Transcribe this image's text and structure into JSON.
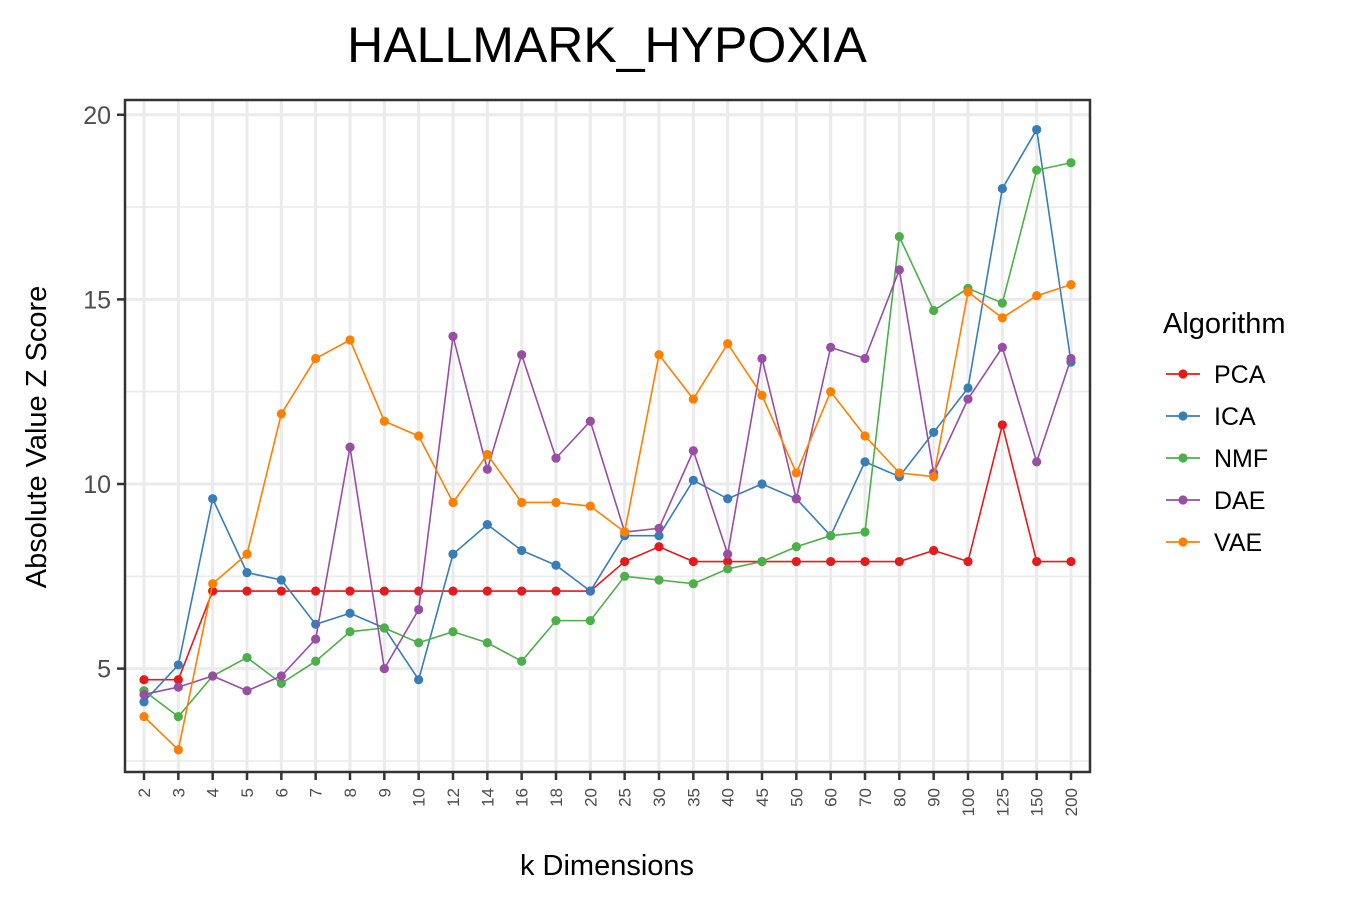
{
  "chart_data": {
    "type": "line",
    "title": "HALLMARK_HYPOXIA",
    "xlabel": "k Dimensions",
    "ylabel": "Absolute Value Z Score",
    "categories": [
      "2",
      "3",
      "4",
      "5",
      "6",
      "7",
      "8",
      "9",
      "10",
      "12",
      "14",
      "16",
      "18",
      "20",
      "25",
      "30",
      "35",
      "40",
      "45",
      "50",
      "60",
      "70",
      "80",
      "90",
      "100",
      "125",
      "150",
      "200"
    ],
    "ylim": [
      2.2,
      20.4
    ],
    "yticks": [
      "5",
      "10",
      "15",
      "20"
    ],
    "grid": true,
    "legend": {
      "title": "Algorithm",
      "position": "right"
    },
    "series": [
      {
        "name": "PCA",
        "color": "#e41a1c",
        "values": [
          4.7,
          4.7,
          7.1,
          7.1,
          7.1,
          7.1,
          7.1,
          7.1,
          7.1,
          7.1,
          7.1,
          7.1,
          7.1,
          7.1,
          7.9,
          8.3,
          7.9,
          7.9,
          7.9,
          7.9,
          7.9,
          7.9,
          7.9,
          8.2,
          7.9,
          11.6,
          7.9,
          7.9
        ]
      },
      {
        "name": "ICA",
        "color": "#377eb8",
        "values": [
          4.1,
          5.1,
          9.6,
          7.6,
          7.4,
          6.2,
          6.5,
          6.1,
          4.7,
          8.1,
          8.9,
          8.2,
          7.8,
          7.1,
          8.6,
          8.6,
          10.1,
          9.6,
          10.0,
          9.6,
          8.6,
          10.6,
          10.2,
          11.4,
          12.6,
          18.0,
          19.6,
          13.3
        ]
      },
      {
        "name": "NMF",
        "color": "#4daf4a",
        "values": [
          4.4,
          3.7,
          4.8,
          5.3,
          4.6,
          5.2,
          6.0,
          6.1,
          5.7,
          6.0,
          5.7,
          5.2,
          6.3,
          6.3,
          7.5,
          7.4,
          7.3,
          7.7,
          7.9,
          8.3,
          8.6,
          8.7,
          16.7,
          14.7,
          15.3,
          14.9,
          18.5,
          18.7
        ]
      },
      {
        "name": "DAE",
        "color": "#984ea3",
        "values": [
          4.3,
          4.5,
          4.8,
          4.4,
          4.8,
          5.8,
          11.0,
          5.0,
          6.6,
          14.0,
          10.4,
          13.5,
          10.7,
          11.7,
          8.7,
          8.8,
          10.9,
          8.1,
          13.4,
          9.6,
          13.7,
          13.4,
          15.8,
          10.3,
          12.3,
          13.7,
          10.6,
          13.4
        ]
      },
      {
        "name": "VAE",
        "color": "#ff7f00",
        "values": [
          3.7,
          2.8,
          7.3,
          8.1,
          11.9,
          13.4,
          13.9,
          11.7,
          11.3,
          9.5,
          10.8,
          9.5,
          9.5,
          9.4,
          8.7,
          13.5,
          12.3,
          13.8,
          12.4,
          10.3,
          12.5,
          11.3,
          10.3,
          10.2,
          15.2,
          14.5,
          15.1,
          15.4
        ]
      }
    ]
  }
}
